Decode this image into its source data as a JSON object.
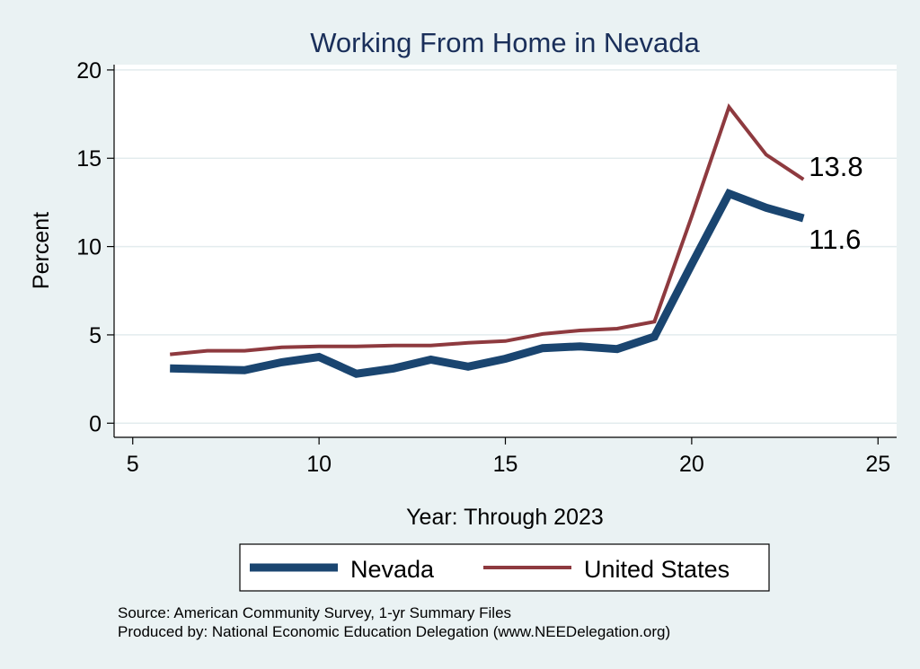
{
  "chart_data": {
    "type": "line",
    "title": "Working From Home in Nevada",
    "xlabel": "Year: Through 2023",
    "ylabel": "Percent",
    "xlim": [
      4.5,
      25.5
    ],
    "ylim": [
      -0.8,
      20.3
    ],
    "xticks": [
      5,
      10,
      15,
      20,
      25
    ],
    "yticks": [
      0,
      5,
      10,
      15,
      20
    ],
    "grid": true,
    "legend_position": "bottom",
    "series": [
      {
        "name": "Nevada",
        "color": "#1a4570",
        "line_weight": "thick",
        "x": [
          6,
          7,
          8,
          9,
          10,
          11,
          12,
          13,
          14,
          15,
          16,
          17,
          18,
          19,
          20,
          21,
          22,
          23
        ],
        "y": [
          3.1,
          3.05,
          3.0,
          3.45,
          3.75,
          2.8,
          3.1,
          3.6,
          3.2,
          3.65,
          4.25,
          4.35,
          4.2,
          4.9,
          9.0,
          13.0,
          12.2,
          11.6
        ],
        "end_label": "11.6"
      },
      {
        "name": "United States",
        "color": "#8e3a3f",
        "line_weight": "thin",
        "x": [
          6,
          7,
          8,
          9,
          10,
          11,
          12,
          13,
          14,
          15,
          16,
          17,
          18,
          19,
          20,
          21,
          22,
          23
        ],
        "y": [
          3.9,
          4.1,
          4.1,
          4.3,
          4.35,
          4.35,
          4.4,
          4.4,
          4.55,
          4.65,
          5.05,
          5.25,
          5.35,
          5.75,
          11.7,
          17.9,
          15.2,
          13.8
        ],
        "end_label": "13.8"
      }
    ]
  },
  "notes": {
    "source": "Source: American Community Survey, 1-yr Summary Files",
    "produced_by": "Produced by: National Economic Education Delegation (www.NEEDelegation.org)"
  }
}
